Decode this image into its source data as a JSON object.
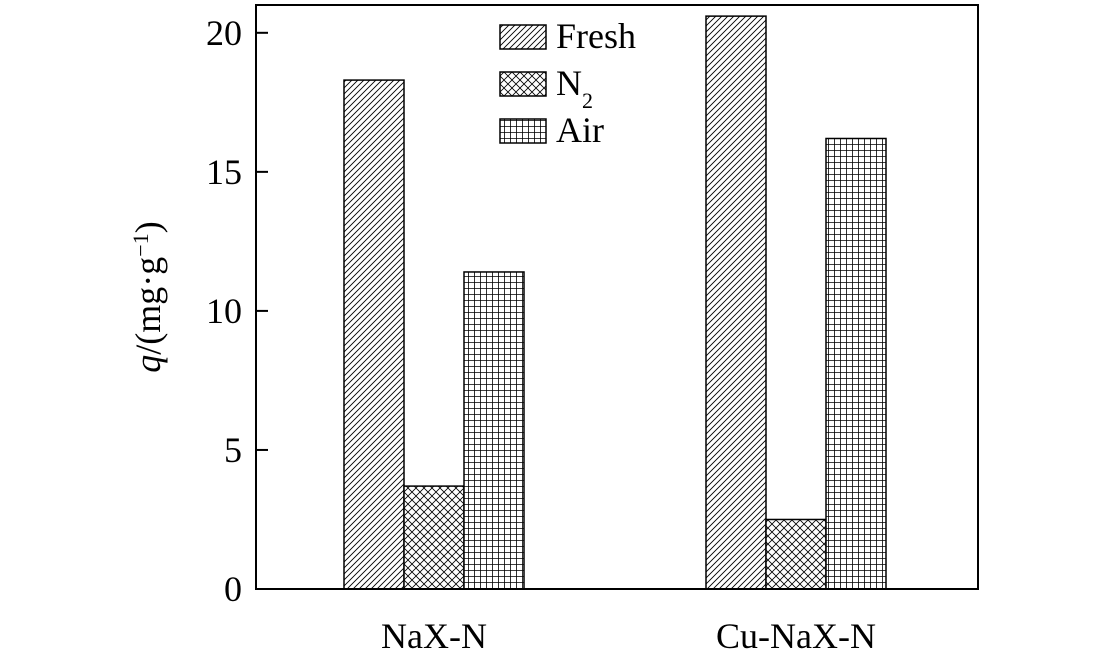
{
  "chart_data": {
    "type": "bar",
    "categories": [
      "NaX-N",
      "Cu-NaX-N"
    ],
    "series": [
      {
        "name": "Fresh",
        "values": [
          18.3,
          20.6
        ],
        "pattern": "diagonal"
      },
      {
        "name": "N",
        "name_sub": "2",
        "values": [
          3.7,
          2.5
        ],
        "pattern": "crosshatch"
      },
      {
        "name": "Air",
        "values": [
          11.4,
          16.2
        ],
        "pattern": "grid"
      }
    ],
    "ylabel": {
      "italic": "q",
      "text": "/(mg·g",
      "sup": "−1",
      "tail": ")"
    },
    "xlabel": "",
    "ylim": [
      0,
      21
    ],
    "yticks": [
      0,
      5,
      10,
      15,
      20
    ],
    "grid": false,
    "legend_position": "top-center",
    "colors": {
      "axis": "#000000",
      "bar_fill": "#ffffff",
      "hatch": "#000000"
    }
  }
}
